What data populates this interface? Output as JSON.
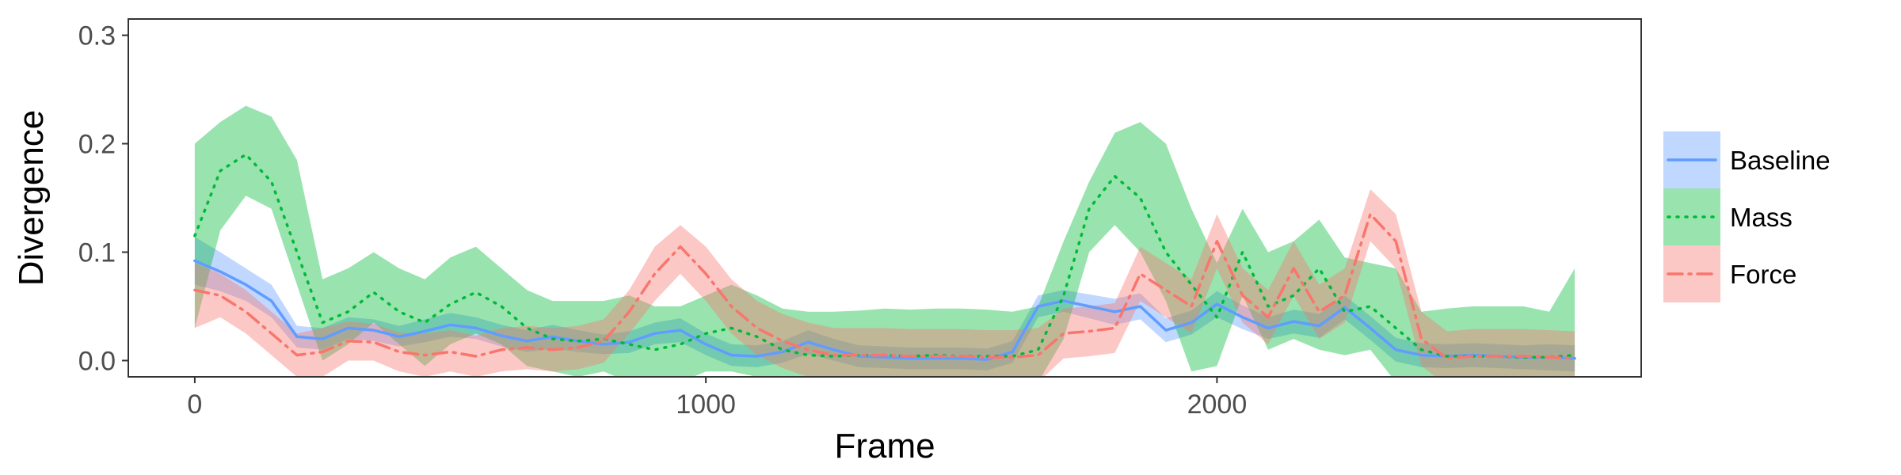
{
  "chart_data": {
    "type": "line",
    "xlabel": "Frame",
    "ylabel": "Divergence",
    "xlim": [
      -130,
      2830
    ],
    "ylim": [
      -0.015,
      0.315
    ],
    "xticks": [
      0,
      1000,
      2000
    ],
    "xtick_labels": [
      "0",
      "1000",
      "2000"
    ],
    "yticks": [
      0.0,
      0.1,
      0.2,
      0.3
    ],
    "ytick_labels": [
      "0.0",
      "0.1",
      "0.2",
      "0.3"
    ],
    "grid": false,
    "legend_position": "right",
    "x": [
      0,
      50,
      100,
      150,
      200,
      250,
      300,
      350,
      400,
      450,
      500,
      550,
      600,
      650,
      700,
      750,
      800,
      850,
      900,
      950,
      1000,
      1050,
      1100,
      1150,
      1200,
      1250,
      1300,
      1350,
      1400,
      1450,
      1500,
      1550,
      1600,
      1650,
      1700,
      1750,
      1800,
      1850,
      1900,
      1950,
      2000,
      2050,
      2100,
      2150,
      2200,
      2250,
      2300,
      2350,
      2400,
      2450,
      2500,
      2550,
      2600,
      2650,
      2700
    ],
    "series": [
      {
        "name": "Baseline",
        "color": "#619CFF",
        "line_style": "solid",
        "values": [
          0.092,
          0.082,
          0.07,
          0.055,
          0.022,
          0.02,
          0.03,
          0.028,
          0.022,
          0.027,
          0.033,
          0.03,
          0.023,
          0.018,
          0.022,
          0.018,
          0.015,
          0.017,
          0.025,
          0.028,
          0.015,
          0.005,
          0.004,
          0.008,
          0.017,
          0.01,
          0.004,
          0.003,
          0.002,
          0.002,
          0.002,
          0.001,
          0.008,
          0.05,
          0.055,
          0.05,
          0.045,
          0.05,
          0.028,
          0.035,
          0.052,
          0.04,
          0.03,
          0.036,
          0.032,
          0.049,
          0.03,
          0.01,
          0.005,
          0.004,
          0.005,
          0.004,
          0.003,
          0.003,
          0.002
        ],
        "lower": [
          0.07,
          0.064,
          0.055,
          0.04,
          0.012,
          0.01,
          0.02,
          0.018,
          0.013,
          0.017,
          0.022,
          0.02,
          0.013,
          0.008,
          0.011,
          0.008,
          0.006,
          0.007,
          0.015,
          0.017,
          0.005,
          -0.005,
          -0.006,
          -0.002,
          0.006,
          0.0,
          -0.006,
          -0.007,
          -0.008,
          -0.008,
          -0.008,
          -0.009,
          -0.002,
          0.04,
          0.045,
          0.039,
          0.033,
          0.038,
          0.017,
          0.024,
          0.04,
          0.029,
          0.02,
          0.025,
          0.021,
          0.038,
          0.019,
          -0.001,
          -0.006,
          -0.007,
          -0.006,
          -0.007,
          -0.008,
          -0.009,
          -0.01
        ],
        "upper": [
          0.114,
          0.1,
          0.085,
          0.07,
          0.032,
          0.03,
          0.04,
          0.038,
          0.032,
          0.038,
          0.044,
          0.04,
          0.033,
          0.028,
          0.033,
          0.028,
          0.024,
          0.027,
          0.035,
          0.039,
          0.025,
          0.015,
          0.014,
          0.018,
          0.028,
          0.02,
          0.014,
          0.013,
          0.012,
          0.012,
          0.012,
          0.011,
          0.018,
          0.06,
          0.065,
          0.061,
          0.057,
          0.062,
          0.039,
          0.046,
          0.064,
          0.051,
          0.04,
          0.047,
          0.043,
          0.06,
          0.041,
          0.021,
          0.016,
          0.015,
          0.016,
          0.015,
          0.014,
          0.015,
          0.014
        ]
      },
      {
        "name": "Mass",
        "color": "#00BA38",
        "line_style": "dotted",
        "values": [
          0.115,
          0.175,
          0.19,
          0.165,
          0.1,
          0.035,
          0.045,
          0.063,
          0.045,
          0.035,
          0.052,
          0.063,
          0.05,
          0.03,
          0.02,
          0.018,
          0.02,
          0.015,
          0.01,
          0.015,
          0.025,
          0.03,
          0.022,
          0.01,
          0.005,
          0.004,
          0.005,
          0.005,
          0.004,
          0.005,
          0.004,
          0.004,
          0.004,
          0.01,
          0.06,
          0.14,
          0.17,
          0.15,
          0.1,
          0.07,
          0.04,
          0.1,
          0.05,
          0.06,
          0.085,
          0.045,
          0.05,
          0.03,
          0.01,
          0.004,
          0.004,
          0.004,
          0.003,
          0.003,
          0.005
        ],
        "lower": [
          0.03,
          0.12,
          0.152,
          0.14,
          0.07,
          0.0,
          0.015,
          0.035,
          0.015,
          -0.005,
          0.015,
          0.025,
          0.015,
          -0.005,
          -0.01,
          -0.015,
          -0.01,
          -0.02,
          -0.025,
          -0.02,
          -0.01,
          -0.01,
          -0.015,
          -0.025,
          -0.03,
          -0.03,
          -0.03,
          -0.03,
          -0.03,
          -0.03,
          -0.03,
          -0.03,
          -0.03,
          -0.02,
          0.02,
          0.1,
          0.125,
          0.1,
          0.055,
          -0.01,
          -0.005,
          0.06,
          0.01,
          0.02,
          0.01,
          0.005,
          0.01,
          -0.02,
          -0.03,
          -0.035,
          -0.035,
          -0.035,
          -0.035,
          -0.035,
          -0.035
        ],
        "upper": [
          0.2,
          0.22,
          0.235,
          0.225,
          0.185,
          0.075,
          0.085,
          0.1,
          0.085,
          0.075,
          0.095,
          0.105,
          0.085,
          0.065,
          0.055,
          0.055,
          0.055,
          0.06,
          0.05,
          0.05,
          0.06,
          0.07,
          0.06,
          0.048,
          0.045,
          0.045,
          0.046,
          0.048,
          0.047,
          0.048,
          0.048,
          0.047,
          0.045,
          0.05,
          0.11,
          0.165,
          0.21,
          0.22,
          0.2,
          0.14,
          0.09,
          0.14,
          0.1,
          0.11,
          0.13,
          0.095,
          0.09,
          0.085,
          0.045,
          0.048,
          0.05,
          0.05,
          0.05,
          0.045,
          0.085
        ]
      },
      {
        "name": "Force",
        "color": "#F8766D",
        "line_style": "dashdot",
        "values": [
          0.065,
          0.06,
          0.045,
          0.025,
          0.005,
          0.008,
          0.018,
          0.017,
          0.008,
          0.005,
          0.008,
          0.004,
          0.01,
          0.012,
          0.01,
          0.012,
          0.018,
          0.045,
          0.08,
          0.105,
          0.08,
          0.05,
          0.03,
          0.018,
          0.01,
          0.005,
          0.005,
          0.005,
          0.004,
          0.004,
          0.004,
          0.003,
          0.003,
          0.005,
          0.025,
          0.027,
          0.03,
          0.08,
          0.065,
          0.05,
          0.11,
          0.06,
          0.04,
          0.085,
          0.045,
          0.06,
          0.135,
          0.11,
          0.02,
          0.002,
          0.004,
          0.004,
          0.004,
          0.003,
          0.002
        ],
        "lower": [
          0.03,
          0.04,
          0.025,
          0.005,
          -0.015,
          -0.015,
          0.0,
          0.0,
          -0.01,
          -0.015,
          -0.01,
          -0.015,
          -0.01,
          -0.008,
          -0.01,
          -0.008,
          -0.002,
          0.025,
          0.055,
          0.08,
          0.055,
          0.025,
          0.005,
          -0.007,
          -0.015,
          -0.02,
          -0.02,
          -0.02,
          -0.021,
          -0.021,
          -0.021,
          -0.022,
          -0.022,
          -0.02,
          0.002,
          0.004,
          0.007,
          0.055,
          0.04,
          0.025,
          0.085,
          0.035,
          0.015,
          0.06,
          0.02,
          0.035,
          0.11,
          0.085,
          -0.005,
          -0.023,
          -0.021,
          -0.021,
          -0.021,
          -0.022,
          -0.023
        ],
        "upper": [
          0.09,
          0.08,
          0.065,
          0.045,
          0.025,
          0.03,
          0.036,
          0.034,
          0.026,
          0.025,
          0.028,
          0.023,
          0.03,
          0.032,
          0.03,
          0.032,
          0.038,
          0.065,
          0.105,
          0.125,
          0.105,
          0.075,
          0.055,
          0.043,
          0.035,
          0.03,
          0.03,
          0.03,
          0.029,
          0.029,
          0.029,
          0.028,
          0.028,
          0.03,
          0.048,
          0.05,
          0.053,
          0.105,
          0.09,
          0.075,
          0.135,
          0.085,
          0.065,
          0.11,
          0.07,
          0.085,
          0.158,
          0.135,
          0.045,
          0.027,
          0.029,
          0.029,
          0.029,
          0.028,
          0.027
        ]
      }
    ]
  }
}
